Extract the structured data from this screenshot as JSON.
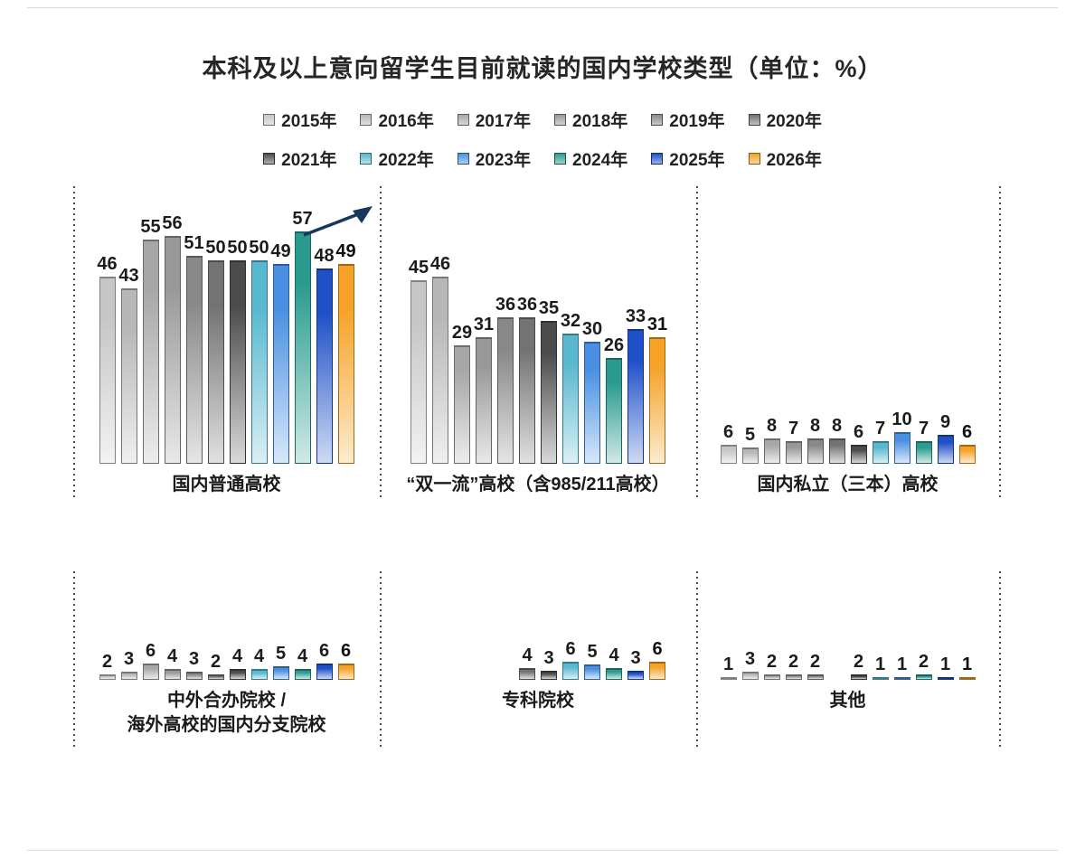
{
  "title": "本科及以上意向留学生目前就读的国内学校类型（单位：%）",
  "chart_data": {
    "type": "bar",
    "unit": "%",
    "title": "本科及以上意向留学生目前就读的国内学校类型（单位：%）",
    "legend_position": "top",
    "grid": false,
    "categories": [
      "2015年",
      "2016年",
      "2017年",
      "2018年",
      "2019年",
      "2020年",
      "2021年",
      "2022年",
      "2023年",
      "2024年",
      "2025年",
      "2026年"
    ],
    "series_colors": [
      "#c6c6c6",
      "#b7b7b7",
      "#a7a7a7",
      "#989898",
      "#888888",
      "#737373",
      "#4c4c4c",
      "#57b8cf",
      "#4a90e2",
      "#2a9b8e",
      "#1e50c8",
      "#f6a227"
    ],
    "panels": [
      {
        "caption_lines": [
          "国内普通高校"
        ],
        "values": [
          46,
          43,
          55,
          56,
          51,
          50,
          50,
          50,
          49,
          57,
          48,
          49
        ],
        "annotation": "up-trend-arrow"
      },
      {
        "caption_lines": [
          "“双一流”高校（含985/211高校）"
        ],
        "values": [
          45,
          46,
          29,
          31,
          36,
          36,
          35,
          32,
          30,
          26,
          33,
          31
        ]
      },
      {
        "caption_lines": [
          "国内私立（三本）高校"
        ],
        "values": [
          6,
          5,
          8,
          7,
          8,
          8,
          6,
          7,
          10,
          7,
          9,
          6
        ]
      },
      {
        "caption_lines": [
          "中外合办院校 /",
          "海外高校的国内分支院校"
        ],
        "values": [
          2,
          3,
          6,
          4,
          3,
          2,
          4,
          4,
          5,
          4,
          6,
          6
        ]
      },
      {
        "caption_lines": [
          "专科院校"
        ],
        "values": [
          null,
          null,
          null,
          null,
          null,
          4,
          3,
          6,
          5,
          4,
          3,
          6
        ]
      },
      {
        "caption_lines": [
          "其他"
        ],
        "values": [
          1,
          3,
          2,
          2,
          2,
          null,
          2,
          1,
          1,
          2,
          1,
          1
        ]
      }
    ],
    "arrow_color": "#17375e"
  }
}
